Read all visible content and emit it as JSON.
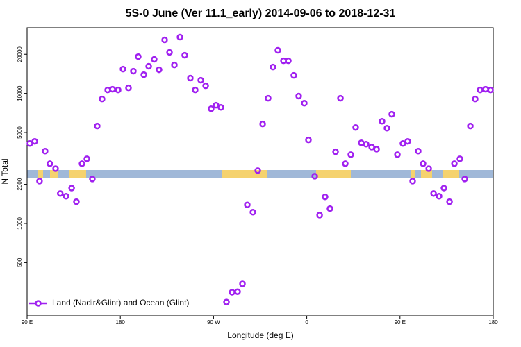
{
  "chart_data": {
    "type": "scatter",
    "title": "5S-0 June (Ver 11.1_early)   2014-09-06 to 2018-12-31",
    "x_label": "Longitude (deg E)",
    "y_label": "N Total",
    "x": [
      92.7,
      97.4,
      102,
      107.4,
      112,
      117.5,
      122,
      127.6,
      133,
      137.6,
      143,
      147.7,
      153,
      157.7,
      162.4,
      167.8,
      172.5,
      177.9,
      182.6,
      187.9,
      192.6,
      197.3,
      202.7,
      207.4,
      212.7,
      217.4,
      222.8,
      227.5,
      232.2,
      237.6,
      242.2,
      247.6,
      252.3,
      257.7,
      262.4,
      267.7,
      272.4,
      277.1,
      282.5,
      287.9,
      293.2,
      297.9,
      302.6,
      308,
      312.7,
      317.4,
      322.7,
      327.4,
      332.1,
      337.5,
      342.2,
      347.5,
      352.2,
      357.6,
      361.6,
      367.7,
      372.4,
      377.7,
      382.4,
      387.8,
      392.5,
      397.2,
      402.5,
      407.2,
      412.6,
      417.3,
      422.7,
      427.4,
      432.7,
      437.4,
      442.1,
      447.5,
      452.8,
      457.5,
      462.2,
      467.6,
      472.3,
      477.7,
      482.4,
      487.7,
      492.4,
      497.8,
      502.5,
      507.8,
      512.5,
      517.9,
      522.6,
      527.3,
      532.7,
      537.4
    ],
    "series": [
      {
        "name": "Land (Nadir&Glint) and Ocean (Glint)",
        "color": "#a020f0",
        "values": [
          4120,
          4280,
          2120,
          3600,
          2880,
          2640,
          1700,
          1620,
          1870,
          1470,
          2880,
          3140,
          2200,
          5610,
          9060,
          10640,
          10770,
          10640,
          15380,
          11040,
          14830,
          19200,
          13930,
          16170,
          18280,
          15200,
          25800,
          20700,
          16560,
          27100,
          19670,
          13120,
          10640,
          12640,
          11450,
          7620,
          8110,
          7810,
          249,
          296,
          299,
          343,
          1390,
          1220,
          2550,
          5820,
          9180,
          15960,
          21460,
          17820,
          17820,
          13770,
          9530,
          8410,
          4390,
          2310,
          1160,
          1600,
          1300,
          3560,
          9180,
          2880,
          3380,
          5470,
          4170,
          4070,
          3870,
          3730,
          6110,
          5400,
          6920,
          3380,
          4120,
          4280,
          2120,
          3600,
          2880,
          2640,
          1700,
          1620,
          1870,
          1470,
          2880,
          3140,
          2200,
          5610,
          9060,
          10640,
          10770,
          10640
        ]
      }
    ],
    "xlim": [
      90,
      540
    ],
    "xticks": [
      {
        "value": 90,
        "label": "90 E"
      },
      180,
      {
        "value": 270,
        "label": "90 W"
      },
      {
        "value": 360,
        "label": "0"
      },
      {
        "value": 450,
        "label": "90 E"
      },
      {
        "value": 540,
        "label": "180"
      }
    ],
    "ylim": [
      195,
      32000
    ],
    "log_y": true,
    "yticks": [
      500,
      1000,
      2000,
      5000,
      10000,
      20000
    ],
    "legend": "bottom-left"
  }
}
